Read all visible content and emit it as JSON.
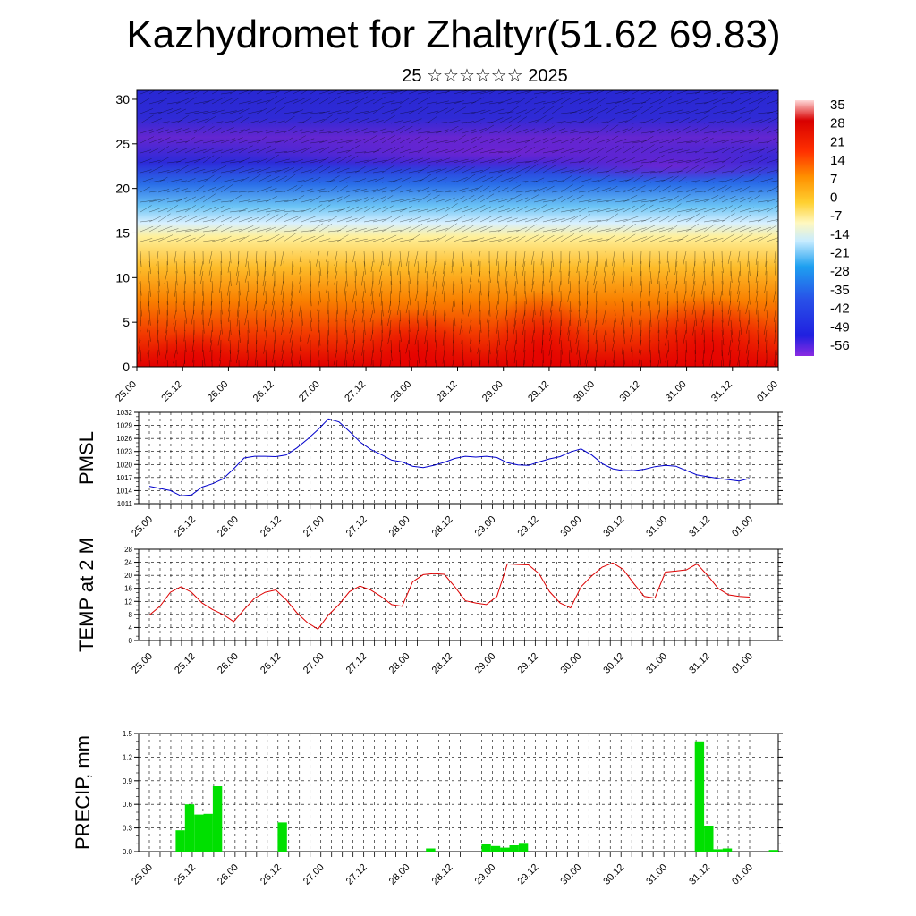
{
  "title": "Kazhydromet for Zhaltyr(51.62 69.83)",
  "subtitle": "25 ☆☆☆☆☆☆ 2025",
  "time_labels": [
    "25.00",
    "25.12",
    "26.00",
    "26.12",
    "27.00",
    "27.12",
    "28.00",
    "28.12",
    "29.00",
    "29.12",
    "30.00",
    "30.12",
    "31.00",
    "31.12",
    "01.00"
  ],
  "colorbar": {
    "labels": [
      "35",
      "28",
      "21",
      "14",
      "7",
      "0",
      "-7",
      "-14",
      "-21",
      "-28",
      "-35",
      "-42",
      "-49",
      "-56"
    ]
  },
  "chart_data": [
    {
      "type": "heatmap",
      "title": "",
      "y_ticks": [
        "0",
        "5",
        "10",
        "15",
        "20",
        "25",
        "30"
      ],
      "ylim": [
        0,
        31
      ],
      "x": [
        "25.00",
        "25.12",
        "26.00",
        "26.12",
        "27.00",
        "27.12",
        "28.00",
        "28.12",
        "29.00",
        "29.12",
        "30.00",
        "30.12",
        "31.00",
        "31.12",
        "01.00"
      ],
      "colormap_range": [
        -60,
        38
      ],
      "description_value": "temperature with altitude (km) and wind barbs"
    },
    {
      "type": "line",
      "ylabel": "PMSL",
      "y_ticks": [
        "1011",
        "1014",
        "1017",
        "1020",
        "1023",
        "1026",
        "1029",
        "1032"
      ],
      "ylim": [
        1011,
        1032
      ],
      "color": "#0000cc",
      "values": [
        1015,
        1014.5,
        1014,
        1012.8,
        1013.0,
        1014.8,
        1015.6,
        1016.7,
        1019.0,
        1021.5,
        1021.9,
        1021.9,
        1021.8,
        1022.2,
        1023.8,
        1025.8,
        1028.0,
        1030.5,
        1029.8,
        1027.6,
        1025.2,
        1023.5,
        1022.3,
        1021.0,
        1020.6,
        1019.6,
        1019.3,
        1019.8,
        1020.5,
        1021.4,
        1021.9,
        1021.7,
        1021.9,
        1021.6,
        1020.4,
        1019.9,
        1019.8,
        1020.6,
        1021.3,
        1021.8,
        1022.9,
        1023.6,
        1022.2,
        1020.2,
        1019.0,
        1018.6,
        1018.6,
        1018.9,
        1019.5,
        1019.8,
        1019.6,
        1018.6,
        1017.6,
        1017.2,
        1016.8,
        1016.5,
        1016.2,
        1016.8
      ]
    },
    {
      "type": "line",
      "ylabel": "TEMP at 2 M",
      "y_ticks": [
        "0",
        "4",
        "8",
        "12",
        "16",
        "20",
        "24",
        "28"
      ],
      "ylim": [
        0,
        28
      ],
      "color": "#dd0000",
      "values": [
        7.8,
        10.5,
        14.8,
        16.5,
        14.8,
        11.5,
        9.5,
        8.0,
        5.8,
        9.5,
        13.0,
        14.8,
        15.5,
        12.5,
        8.5,
        5.5,
        3.5,
        7.8,
        11.0,
        15.0,
        16.7,
        15.5,
        13.5,
        11.0,
        10.5,
        18.0,
        20.2,
        20.5,
        20.3,
        16.5,
        12.2,
        11.5,
        11.0,
        13.5,
        23.5,
        23.3,
        23.2,
        20.5,
        15.0,
        11.5,
        10.0,
        16.5,
        19.8,
        22.5,
        23.8,
        21.8,
        17.5,
        13.5,
        13.0,
        21.0,
        21.3,
        21.7,
        23.5,
        20.0,
        16.0,
        14.0,
        13.5,
        13.3
      ]
    },
    {
      "type": "bar",
      "ylabel": "PRECIP, mm",
      "y_ticks": [
        "0.0",
        "0.3",
        "0.6",
        "0.9",
        "1.2",
        "1.5"
      ],
      "ylim": [
        0,
        1.5
      ],
      "color": "#00e000",
      "values": [
        0,
        0,
        0,
        0,
        0.27,
        0.6,
        0.47,
        0.48,
        0.83,
        0,
        0,
        0,
        0,
        0,
        0,
        0.37,
        0,
        0,
        0,
        0,
        0,
        0,
        0,
        0,
        0,
        0,
        0,
        0,
        0,
        0,
        0,
        0.04,
        0,
        0,
        0,
        0,
        0,
        0.1,
        0.07,
        0.05,
        0.08,
        0.11,
        0,
        0,
        0,
        0,
        0,
        0,
        0,
        0,
        0,
        0,
        0,
        0,
        0,
        0,
        0,
        0,
        0,
        0,
        1.4,
        0.33,
        0.03,
        0.04,
        0,
        0,
        0,
        0,
        0.02
      ]
    }
  ]
}
